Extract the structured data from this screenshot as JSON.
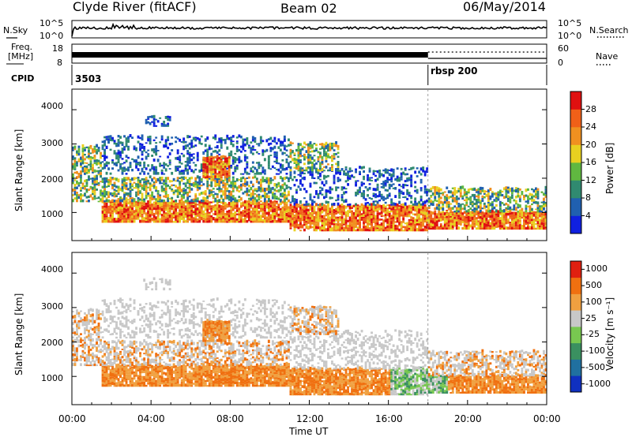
{
  "header": {
    "station": "Clyde River (fitACF)",
    "beam": "Beam 02",
    "date": "06/May/2014"
  },
  "top_panels": {
    "nsky_label": "N.Sky",
    "nsearch_label": "N.Search",
    "noise_ticks": [
      "10^5",
      "10^0"
    ],
    "freq_label_1": "Freq.",
    "freq_label_2": "[MHz]",
    "freq_ticks": [
      "18",
      "8"
    ],
    "nave_label": "Nave",
    "nave_ticks": [
      "60",
      "0"
    ],
    "cpid_label": "CPID",
    "cpid_values": [
      "3503",
      "rbsp 200"
    ],
    "cpid_change_hour": 18.0
  },
  "chart_data": [
    {
      "type": "heatmap",
      "name": "power",
      "ylabel": "Slant Range [km]",
      "ylim": [
        180,
        4600
      ],
      "xlim": [
        0,
        24
      ],
      "yticks": [
        1000,
        2000,
        3000,
        4000
      ],
      "colorbar_label": "Power [dB]",
      "colorbar_ticks": [
        "4",
        "8",
        "12",
        "16",
        "20",
        "24",
        "28"
      ],
      "colors": [
        "#1020e0",
        "#2060b0",
        "#308a70",
        "#60b840",
        "#e8d020",
        "#f09020",
        "#f06018",
        "#e01010"
      ]
    },
    {
      "type": "heatmap",
      "name": "velocity",
      "ylabel": "Slant Range [km]",
      "ylim": [
        180,
        4600
      ],
      "xlim": [
        0,
        24
      ],
      "yticks": [
        1000,
        2000,
        3000,
        4000
      ],
      "colorbar_label": "Velocity [m s⁻¹]",
      "colorbar_ticks": [
        "1000",
        "500",
        "100",
        "25",
        "-25",
        "-100",
        "-500",
        "-1000"
      ],
      "colors": [
        "#1030c0",
        "#2070a0",
        "#3a9060",
        "#78c850",
        "#c8c8c8",
        "#f0a040",
        "#f07010",
        "#e02010"
      ]
    }
  ],
  "x_axis": {
    "tick_labels": [
      "00:00",
      "04:00",
      "08:00",
      "12:00",
      "16:00",
      "20:00",
      "00:00"
    ],
    "tick_hours": [
      0,
      4,
      8,
      12,
      16,
      20,
      24
    ],
    "label": "Time UT"
  }
}
